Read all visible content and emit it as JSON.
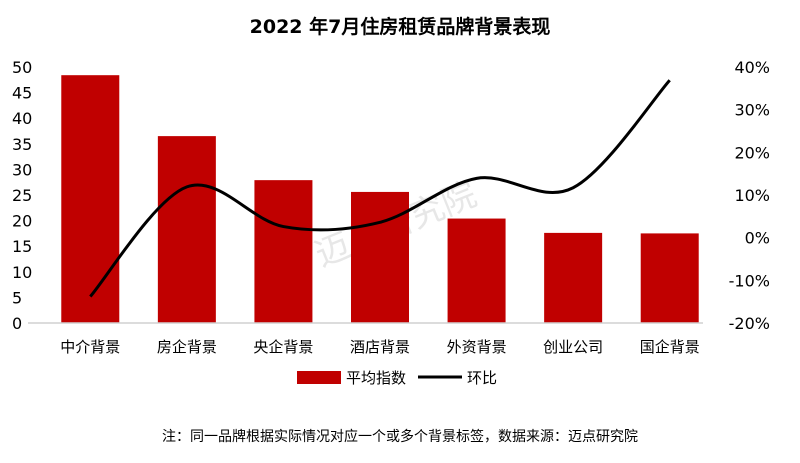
{
  "chart_data": {
    "type": "bar",
    "title": "2022 年7月住房租赁品牌背景表现",
    "categories": [
      "中介背景",
      "房企背景",
      "央企背景",
      "酒店背景",
      "外资背景",
      "创业公司",
      "国企背景"
    ],
    "series": [
      {
        "name": "平均指数",
        "type": "bar",
        "axis": "left",
        "color": "#C00000",
        "values": [
          48.4,
          36.5,
          27.9,
          25.6,
          20.4,
          17.6,
          17.5
        ]
      },
      {
        "name": "环比",
        "type": "line",
        "axis": "right",
        "color": "#000000",
        "values": [
          -13.8,
          11.9,
          2.6,
          3.6,
          13.9,
          11.7,
          36.9
        ]
      }
    ],
    "left_axis": {
      "ylim": [
        0,
        50
      ],
      "ticks": [
        "0",
        "5",
        "10",
        "15",
        "20",
        "25",
        "30",
        "35",
        "40",
        "45",
        "50"
      ]
    },
    "right_axis": {
      "ylim": [
        -20,
        40
      ],
      "unit": "%",
      "ticks": [
        "-20%",
        "-10%",
        "0%",
        "10%",
        "20%",
        "30%",
        "40%"
      ]
    },
    "legend_position": "bottom",
    "grid": false,
    "note": "注：同一品牌根据实际情况对应一个或多个背景标签，数据来源：迈点研究院",
    "watermark": "迈点研究院"
  }
}
